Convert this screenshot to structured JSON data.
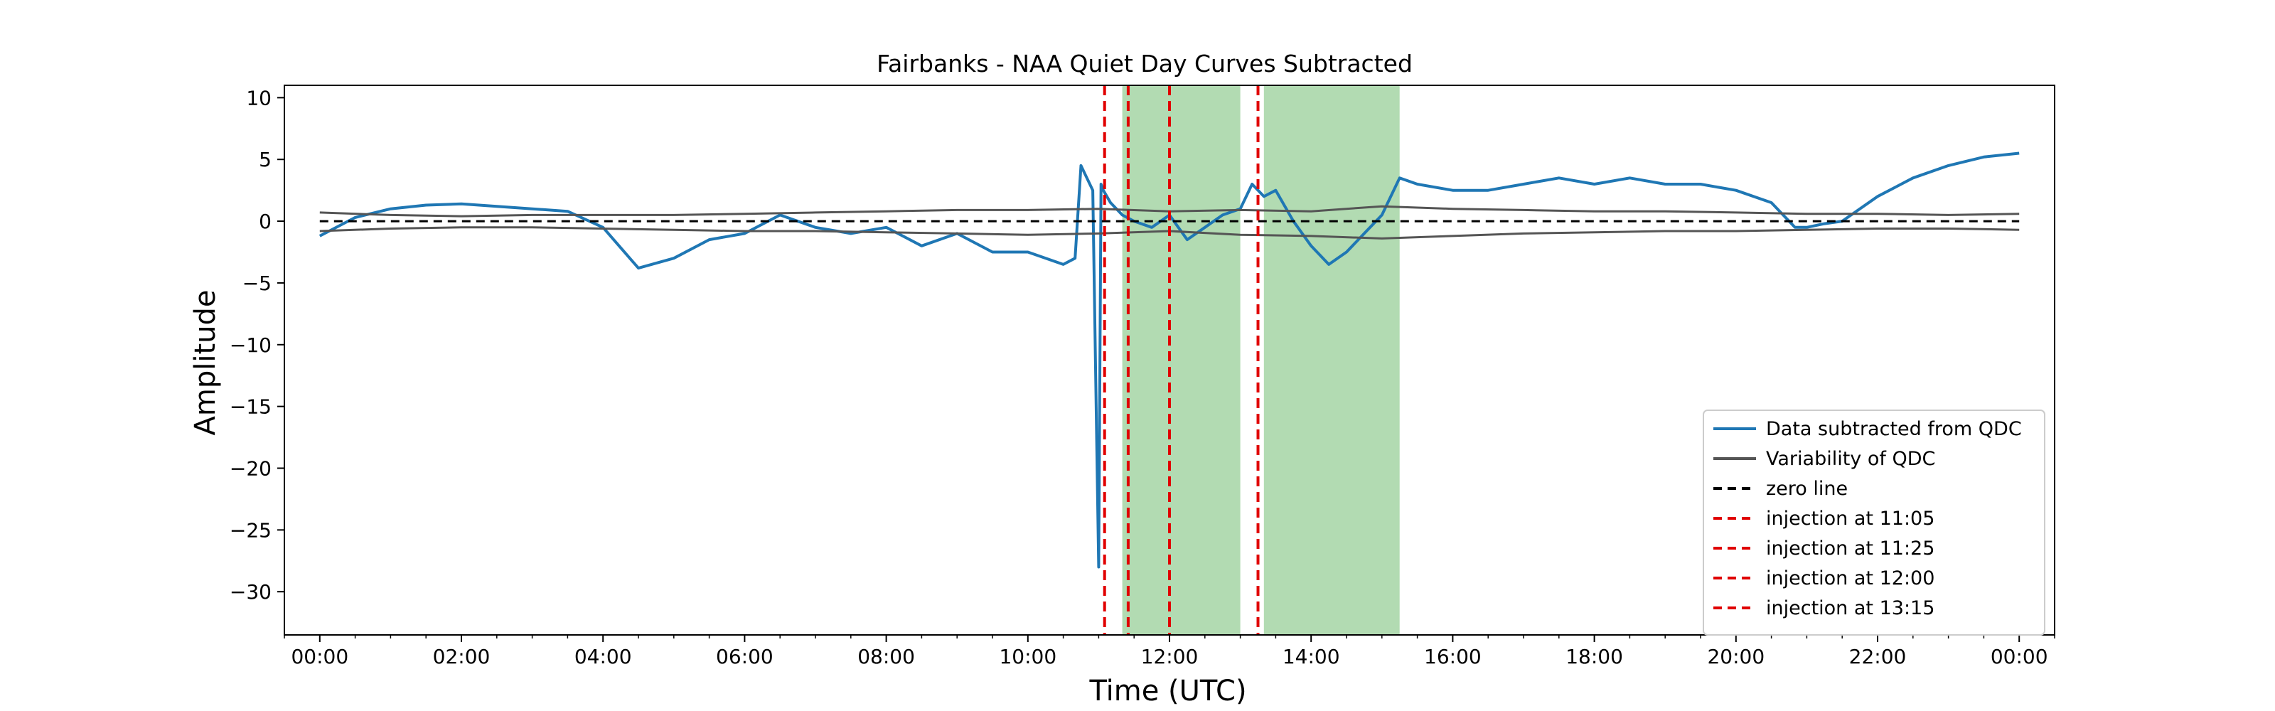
{
  "chart_data": {
    "type": "line",
    "title": "Fairbanks - NAA Quiet Day Curves Subtracted",
    "xlabel": "Time (UTC)",
    "ylabel": "Amplitude",
    "xlim": [
      "-00:30",
      "24:30"
    ],
    "ylim": [
      -33.5,
      11
    ],
    "x_ticks": [
      "00:00",
      "02:00",
      "04:00",
      "06:00",
      "08:00",
      "10:00",
      "12:00",
      "14:00",
      "16:00",
      "18:00",
      "20:00",
      "22:00",
      "00:00"
    ],
    "y_ticks": [
      10,
      5,
      0,
      -5,
      -10,
      -15,
      -20,
      -25,
      -30
    ],
    "grid": false,
    "legend_position": "bottom-right",
    "series": [
      {
        "name": "Data subtracted from QDC",
        "color": "#1f77b4",
        "style": "solid",
        "x": [
          "00:00",
          "00:30",
          "01:00",
          "01:30",
          "02:00",
          "02:30",
          "03:00",
          "03:30",
          "04:00",
          "04:30",
          "05:00",
          "05:30",
          "06:00",
          "06:30",
          "07:00",
          "07:30",
          "08:00",
          "08:30",
          "09:00",
          "09:30",
          "10:00",
          "10:30",
          "10:40",
          "10:45",
          "10:50",
          "10:55",
          "11:00",
          "11:02",
          "11:04",
          "11:10",
          "11:20",
          "11:30",
          "11:45",
          "12:00",
          "12:15",
          "12:30",
          "12:45",
          "13:00",
          "13:10",
          "13:20",
          "13:30",
          "13:45",
          "14:00",
          "14:15",
          "14:30",
          "14:45",
          "15:00",
          "15:15",
          "15:30",
          "16:00",
          "16:30",
          "17:00",
          "17:30",
          "18:00",
          "18:30",
          "19:00",
          "19:30",
          "20:00",
          "20:30",
          "20:50",
          "21:00",
          "21:15",
          "21:30",
          "22:00",
          "22:30",
          "23:00",
          "23:30",
          "24:00"
        ],
        "y": [
          -1.2,
          0.3,
          1.0,
          1.3,
          1.4,
          1.2,
          1.0,
          0.8,
          -0.5,
          -3.8,
          -3.0,
          -1.5,
          -1.0,
          0.5,
          -0.5,
          -1.0,
          -0.5,
          -2.0,
          -1.0,
          -2.5,
          -2.5,
          -3.5,
          -3.0,
          4.5,
          3.5,
          2.5,
          -28.0,
          3.0,
          2.5,
          1.5,
          0.5,
          0.0,
          -0.5,
          0.5,
          -1.5,
          -0.5,
          0.5,
          1.0,
          3.0,
          2.0,
          2.5,
          0.0,
          -2.0,
          -3.5,
          -2.5,
          -1.0,
          0.5,
          3.5,
          3.0,
          2.5,
          2.5,
          3.0,
          3.5,
          3.0,
          3.5,
          3.0,
          3.0,
          2.5,
          1.5,
          -0.5,
          -0.5,
          -0.2,
          0.0,
          2.0,
          3.5,
          4.5,
          5.2,
          5.5
        ]
      },
      {
        "name": "Variability of QDC",
        "color": "#555555",
        "style": "solid",
        "x": [
          "00:00",
          "01:00",
          "02:00",
          "03:00",
          "04:00",
          "05:00",
          "06:00",
          "07:00",
          "08:00",
          "09:00",
          "10:00",
          "11:00",
          "12:00",
          "13:00",
          "14:00",
          "15:00",
          "16:00",
          "17:00",
          "18:00",
          "19:00",
          "20:00",
          "21:00",
          "22:00",
          "23:00",
          "24:00"
        ],
        "y": [
          0.7,
          0.5,
          0.4,
          0.5,
          0.5,
          0.5,
          0.6,
          0.7,
          0.8,
          0.9,
          0.9,
          1.0,
          0.8,
          0.9,
          0.8,
          1.2,
          1.0,
          0.9,
          0.8,
          0.8,
          0.7,
          0.6,
          0.6,
          0.5,
          0.6
        ]
      },
      {
        "name": "",
        "color": "#555555",
        "style": "solid",
        "x": [
          "00:00",
          "01:00",
          "02:00",
          "03:00",
          "04:00",
          "05:00",
          "06:00",
          "07:00",
          "08:00",
          "09:00",
          "10:00",
          "11:00",
          "12:00",
          "13:00",
          "14:00",
          "15:00",
          "16:00",
          "17:00",
          "18:00",
          "19:00",
          "20:00",
          "21:00",
          "22:00",
          "23:00",
          "24:00"
        ],
        "y": [
          -0.8,
          -0.6,
          -0.5,
          -0.5,
          -0.6,
          -0.7,
          -0.8,
          -0.8,
          -0.9,
          -1.0,
          -1.1,
          -1.0,
          -0.8,
          -1.1,
          -1.2,
          -1.4,
          -1.2,
          -1.0,
          -0.9,
          -0.8,
          -0.8,
          -0.7,
          -0.6,
          -0.6,
          -0.7
        ]
      },
      {
        "name": "zero line",
        "color": "#000000",
        "style": "dashed",
        "x": [
          "00:00",
          "24:00"
        ],
        "y": [
          0,
          0
        ]
      }
    ],
    "vertical_lines": [
      {
        "name": "injection at 11:05",
        "x": "11:05",
        "color": "#e00000"
      },
      {
        "name": "injection at 11:25",
        "x": "11:25",
        "color": "#e00000"
      },
      {
        "name": "injection at 12:00",
        "x": "12:00",
        "color": "#e00000"
      },
      {
        "name": "injection at 13:15",
        "x": "13:15",
        "color": "#e00000"
      }
    ],
    "shaded_regions": [
      {
        "start": "11:20",
        "end": "13:00",
        "color": "#b2dbb2"
      },
      {
        "start": "13:20",
        "end": "15:15",
        "color": "#b2dbb2"
      }
    ]
  }
}
